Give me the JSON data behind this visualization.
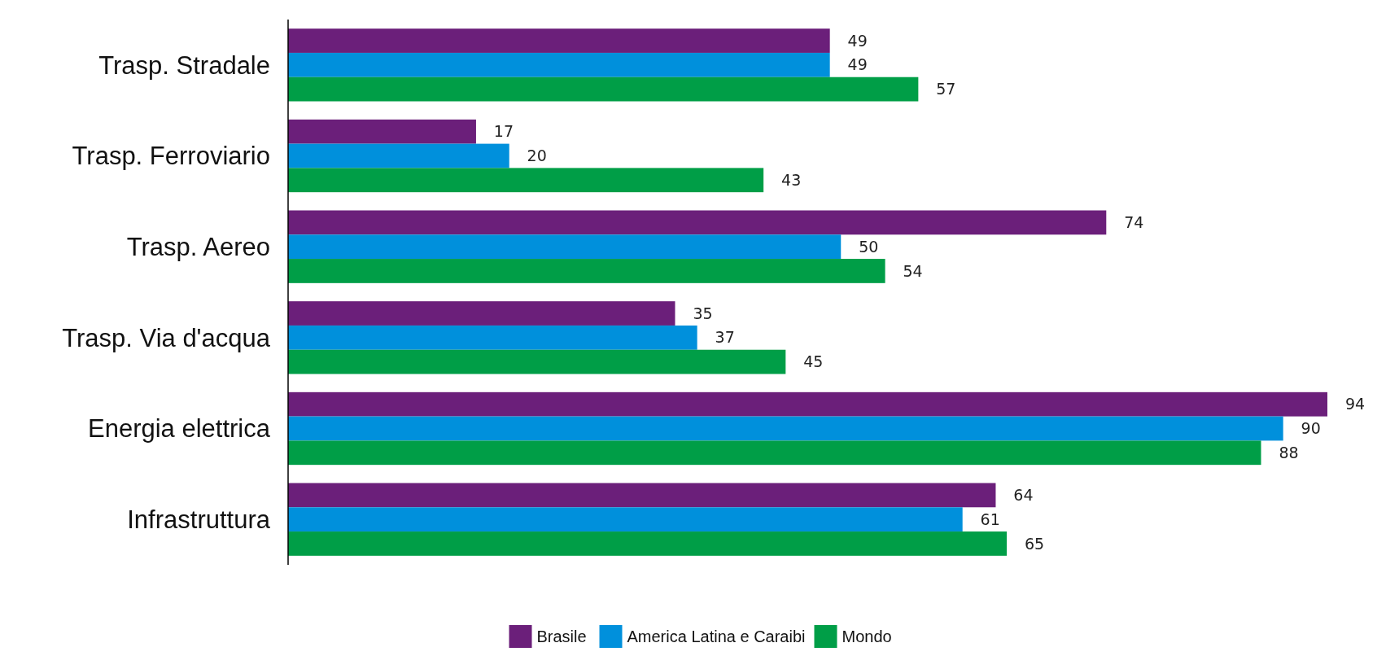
{
  "chart_data": {
    "type": "bar",
    "orientation": "horizontal",
    "categories": [
      "Trasp. Stradale",
      "Trasp. Ferroviario",
      "Trasp. Aereo",
      "Trasp. Via d'acqua",
      "Energia elettrica",
      "Infrastruttura"
    ],
    "series": [
      {
        "name": "Brasile",
        "color": "#6b1f7a",
        "values": [
          49,
          17,
          74,
          35,
          94,
          64
        ]
      },
      {
        "name": "America Latina e Caraibi",
        "color": "#0090dc",
        "values": [
          49,
          20,
          50,
          37,
          90,
          61
        ]
      },
      {
        "name": "Mondo",
        "color": "#009e47",
        "values": [
          57,
          43,
          54,
          45,
          88,
          65
        ]
      }
    ],
    "data_labels": true,
    "legend": "bottom"
  }
}
